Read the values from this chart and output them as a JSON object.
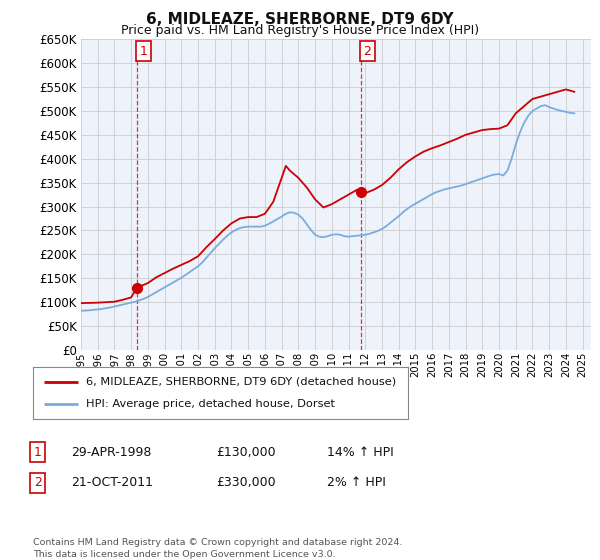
{
  "title": "6, MIDLEAZE, SHERBORNE, DT9 6DY",
  "subtitle": "Price paid vs. HM Land Registry's House Price Index (HPI)",
  "ylim": [
    0,
    650000
  ],
  "yticks": [
    0,
    50000,
    100000,
    150000,
    200000,
    250000,
    300000,
    350000,
    400000,
    450000,
    500000,
    550000,
    600000,
    650000
  ],
  "xmin": 1995.0,
  "xmax": 2025.5,
  "hpi_x": [
    1995.0,
    1995.25,
    1995.5,
    1995.75,
    1996.0,
    1996.25,
    1996.5,
    1996.75,
    1997.0,
    1997.25,
    1997.5,
    1997.75,
    1998.0,
    1998.25,
    1998.5,
    1998.75,
    1999.0,
    1999.25,
    1999.5,
    1999.75,
    2000.0,
    2000.25,
    2000.5,
    2000.75,
    2001.0,
    2001.25,
    2001.5,
    2001.75,
    2002.0,
    2002.25,
    2002.5,
    2002.75,
    2003.0,
    2003.25,
    2003.5,
    2003.75,
    2004.0,
    2004.25,
    2004.5,
    2004.75,
    2005.0,
    2005.25,
    2005.5,
    2005.75,
    2006.0,
    2006.25,
    2006.5,
    2006.75,
    2007.0,
    2007.25,
    2007.5,
    2007.75,
    2008.0,
    2008.25,
    2008.5,
    2008.75,
    2009.0,
    2009.25,
    2009.5,
    2009.75,
    2010.0,
    2010.25,
    2010.5,
    2010.75,
    2011.0,
    2011.25,
    2011.5,
    2011.75,
    2012.0,
    2012.25,
    2012.5,
    2012.75,
    2013.0,
    2013.25,
    2013.5,
    2013.75,
    2014.0,
    2014.25,
    2014.5,
    2014.75,
    2015.0,
    2015.25,
    2015.5,
    2015.75,
    2016.0,
    2016.25,
    2016.5,
    2016.75,
    2017.0,
    2017.25,
    2017.5,
    2017.75,
    2018.0,
    2018.25,
    2018.5,
    2018.75,
    2019.0,
    2019.25,
    2019.5,
    2019.75,
    2020.0,
    2020.25,
    2020.5,
    2020.75,
    2021.0,
    2021.25,
    2021.5,
    2021.75,
    2022.0,
    2022.25,
    2022.5,
    2022.75,
    2023.0,
    2023.25,
    2023.5,
    2023.75,
    2024.0,
    2024.25,
    2024.5
  ],
  "hpi_y": [
    82000,
    82500,
    83000,
    84000,
    85000,
    86000,
    87500,
    89000,
    91000,
    93000,
    95000,
    97000,
    99000,
    101000,
    104000,
    107000,
    111000,
    116000,
    121000,
    126000,
    131000,
    136000,
    141000,
    146000,
    151000,
    157000,
    163000,
    169000,
    175000,
    183000,
    193000,
    203000,
    213000,
    222000,
    231000,
    239000,
    246000,
    251000,
    255000,
    257000,
    258000,
    258000,
    258000,
    258000,
    260000,
    264000,
    269000,
    274000,
    279000,
    285000,
    288000,
    287000,
    283000,
    275000,
    263000,
    251000,
    241000,
    237000,
    236000,
    238000,
    241000,
    242000,
    241000,
    238000,
    237000,
    238000,
    239000,
    240000,
    241000,
    243000,
    246000,
    249000,
    253000,
    259000,
    266000,
    273000,
    280000,
    288000,
    295000,
    301000,
    306000,
    311000,
    316000,
    321000,
    326000,
    330000,
    333000,
    336000,
    338000,
    340000,
    342000,
    344000,
    347000,
    350000,
    353000,
    356000,
    359000,
    362000,
    365000,
    367000,
    368000,
    365000,
    375000,
    400000,
    430000,
    455000,
    475000,
    490000,
    500000,
    505000,
    510000,
    512000,
    508000,
    505000,
    502000,
    500000,
    498000,
    496000,
    495000
  ],
  "red_x": [
    1995.0,
    1995.5,
    1996.0,
    1996.5,
    1997.0,
    1997.5,
    1998.0,
    1998.33,
    1999.0,
    1999.5,
    2000.0,
    2000.5,
    2001.0,
    2001.5,
    2002.0,
    2002.5,
    2003.0,
    2003.5,
    2004.0,
    2004.5,
    2005.0,
    2005.5,
    2006.0,
    2006.5,
    2007.0,
    2007.25,
    2007.5,
    2008.0,
    2008.5,
    2009.0,
    2009.5,
    2010.0,
    2010.5,
    2011.0,
    2011.5,
    2011.75,
    2012.0,
    2012.5,
    2013.0,
    2013.5,
    2014.0,
    2014.5,
    2015.0,
    2015.5,
    2016.0,
    2016.5,
    2017.0,
    2017.5,
    2018.0,
    2018.5,
    2019.0,
    2019.5,
    2020.0,
    2020.5,
    2021.0,
    2021.5,
    2022.0,
    2022.5,
    2023.0,
    2023.5,
    2024.0,
    2024.5
  ],
  "red_y": [
    98000,
    98500,
    99000,
    100000,
    101000,
    105000,
    110000,
    130000,
    140000,
    152000,
    161000,
    170000,
    178000,
    186000,
    196000,
    215000,
    232000,
    250000,
    265000,
    275000,
    278000,
    278000,
    285000,
    310000,
    360000,
    385000,
    375000,
    360000,
    340000,
    315000,
    298000,
    305000,
    315000,
    325000,
    335000,
    330000,
    328000,
    335000,
    345000,
    360000,
    378000,
    393000,
    405000,
    415000,
    422000,
    428000,
    435000,
    442000,
    450000,
    455000,
    460000,
    462000,
    463000,
    470000,
    495000,
    510000,
    525000,
    530000,
    535000,
    540000,
    545000,
    540000
  ],
  "point1_x": 1998.33,
  "point1_y": 130000,
  "point1_label": "1",
  "point1_vline_x": 1998.33,
  "point2_x": 2011.75,
  "point2_y": 330000,
  "point2_label": "2",
  "point2_vline_x": 2011.75,
  "legend_line1": "6, MIDLEAZE, SHERBORNE, DT9 6DY (detached house)",
  "legend_line2": "HPI: Average price, detached house, Dorset",
  "legend_color1": "#cc0000",
  "legend_color2": "#5599cc",
  "table_rows": [
    {
      "num": "1",
      "date": "29-APR-1998",
      "price": "£130,000",
      "change": "14% ↑ HPI"
    },
    {
      "num": "2",
      "date": "21-OCT-2011",
      "price": "£330,000",
      "change": "2% ↑ HPI"
    }
  ],
  "footnote": "Contains HM Land Registry data © Crown copyright and database right 2024.\nThis data is licensed under the Open Government Licence v3.0.",
  "background_color": "#ffffff",
  "grid_color": "#cccccc",
  "plot_bg_color": "#eef2fa",
  "red_line_color": "#cc0000",
  "blue_line_color": "#7aaddd",
  "title_fontsize": 11,
  "subtitle_fontsize": 9
}
